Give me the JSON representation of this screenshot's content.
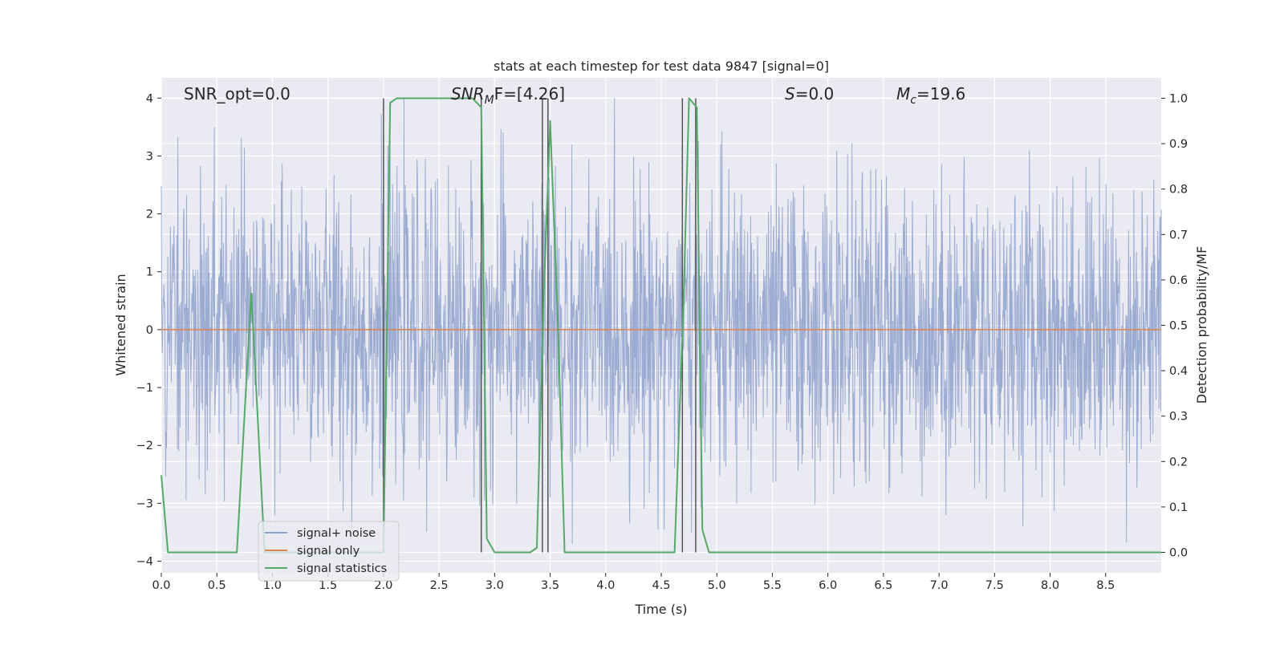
{
  "chart_data": {
    "type": "line",
    "title": "stats at each timestep for test data 9847 [signal=0]",
    "xlabel": "Time (s)",
    "ylabel": "Whitened strain",
    "y2label": "Detection probability/MF",
    "xlim": [
      0.0,
      9.0
    ],
    "ylim": [
      -4.2,
      4.35
    ],
    "y2lim": [
      -0.045,
      1.045
    ],
    "x_ticks": [
      "0.0",
      "0.5",
      "1.0",
      "1.5",
      "2.0",
      "2.5",
      "3.0",
      "3.5",
      "4.0",
      "4.5",
      "5.0",
      "5.5",
      "6.0",
      "6.5",
      "7.0",
      "7.5",
      "8.0",
      "8.5"
    ],
    "y_ticks": [
      "4",
      "3",
      "2",
      "1",
      "0",
      "−1",
      "−2",
      "−3",
      "−4"
    ],
    "y2_ticks": [
      "1.0",
      "0.9",
      "0.8",
      "0.7",
      "0.6",
      "0.5",
      "0.4",
      "0.3",
      "0.2",
      "0.1",
      "0.0"
    ],
    "grid": true,
    "legend_position": "lower-left",
    "annotations": [
      {
        "text": "SNR_opt=0.0",
        "x": 0.2
      },
      {
        "main": "SNR",
        "sub": "M",
        "rest": "F=[4.26]",
        "x": 2.6
      },
      {
        "main": "S",
        "rest": "=0.0",
        "x": 5.6
      },
      {
        "main": "M",
        "sub": "c",
        "rest": "=19.6",
        "x": 6.6
      }
    ],
    "series": [
      {
        "name": "signal+ noise",
        "color": "#8da0cb",
        "kind": "noise",
        "amplitude_std": 1.0,
        "n_samples": 2300
      },
      {
        "name": "signal only",
        "color": "#dd8452",
        "y": 0
      },
      {
        "name": "signal statistics",
        "color": "#55a868",
        "axis": "right",
        "x": [
          0.0,
          0.06,
          0.12,
          0.3,
          0.5,
          0.68,
          0.81,
          0.93,
          1.05,
          1.2,
          1.4,
          1.6,
          1.8,
          1.95,
          2.0,
          2.06,
          2.12,
          2.3,
          2.6,
          2.8,
          2.88,
          2.93,
          3.0,
          3.2,
          3.32,
          3.38,
          3.44,
          3.5,
          3.57,
          3.63,
          3.69,
          3.9,
          4.2,
          4.62,
          4.7,
          4.75,
          4.82,
          4.87,
          4.93,
          5.2,
          6.0,
          7.0,
          8.0,
          9.0
        ],
        "y": [
          0.17,
          0.0,
          0.0,
          0.0,
          0.0,
          0.0,
          0.57,
          0.0,
          0.0,
          0.0,
          0.0,
          0.0,
          0.0,
          0.0,
          0.0,
          0.99,
          1.0,
          1.0,
          1.0,
          1.0,
          0.98,
          0.03,
          0.0,
          0.0,
          0.0,
          0.01,
          0.55,
          0.95,
          0.5,
          0.0,
          0.0,
          0.0,
          0.0,
          0.0,
          0.55,
          1.0,
          0.98,
          0.05,
          0.0,
          0.0,
          0.0,
          0.0,
          0.0,
          0.0
        ]
      },
      {
        "name": "vertical markers",
        "color": "#555555",
        "kind": "vlines",
        "legend": false,
        "x": [
          2.0,
          2.88,
          3.43,
          3.48,
          4.69,
          4.81
        ],
        "y_from": 0.0,
        "y_to": 1.0
      }
    ]
  }
}
